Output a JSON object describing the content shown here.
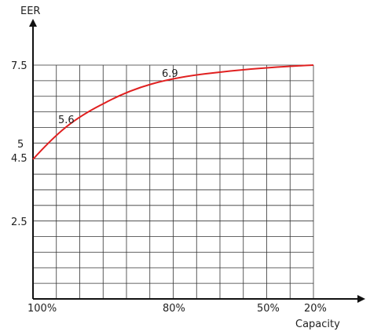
{
  "chart_data": {
    "type": "line",
    "title": "",
    "ylabel": "EER",
    "xlabel": "Capacity",
    "ylim": [
      0,
      7.5
    ],
    "y_ticks": [
      "7.5",
      "5",
      "4.5",
      "2.5"
    ],
    "x_ticks": [
      "100%",
      "80%",
      "50%",
      "20%"
    ],
    "grid": true,
    "series": [
      {
        "color": "#e02020",
        "start_value": 4.5,
        "labeled_points": [
          "5.6",
          "6.9"
        ],
        "end_value": 7.5
      }
    ]
  }
}
